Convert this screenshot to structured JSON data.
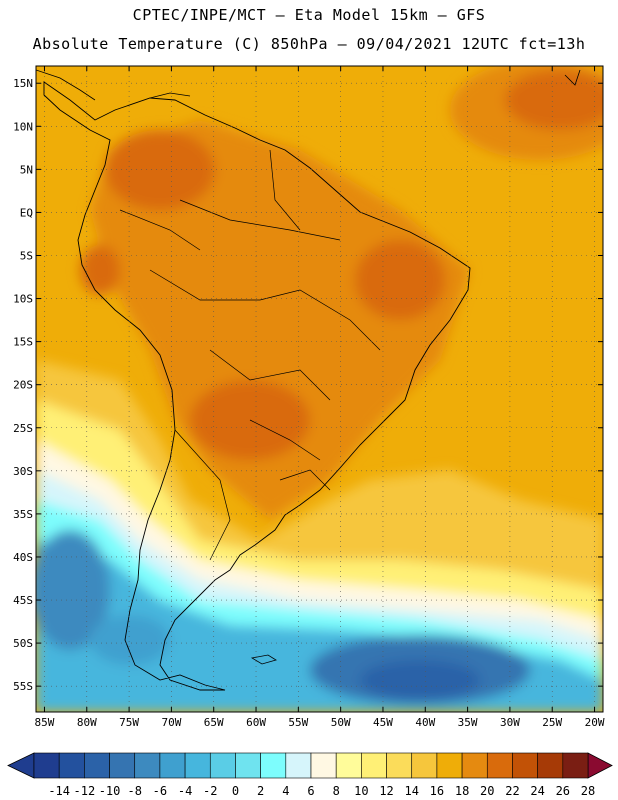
{
  "title": {
    "line1": "CPTEC/INPE/MCT –  Eta Model 15km – GFS",
    "line2": "Absolute Temperature (C) 850hPa – 09/04/2021 12UTC fct=13h"
  },
  "map": {
    "lat_labels": [
      "15N",
      "10N",
      "5N",
      "EQ",
      "5S",
      "10S",
      "15S",
      "20S",
      "25S",
      "30S",
      "35S",
      "40S",
      "45S",
      "50S",
      "55S"
    ],
    "lon_labels": [
      "85W",
      "80W",
      "75W",
      "70W",
      "65W",
      "60W",
      "55W",
      "50W",
      "45W",
      "40W",
      "35W",
      "30W",
      "25W",
      "20W"
    ],
    "lat_range": [
      17,
      -58
    ],
    "lon_range": [
      -86,
      -19
    ]
  },
  "colorbar": {
    "values": [
      "-14",
      "-12",
      "-10",
      "-8",
      "-6",
      "-4",
      "-2",
      "0",
      "2",
      "4",
      "6",
      "8",
      "10",
      "12",
      "14",
      "16",
      "18",
      "20",
      "22",
      "24",
      "26",
      "28"
    ],
    "colors": [
      "#1f3d8f",
      "#23519e",
      "#2b62a8",
      "#3574b1",
      "#3d8abf",
      "#3fa0cf",
      "#46b6dd",
      "#5acde6",
      "#6fe3ef",
      "#7dfdfd",
      "#d6f5fb",
      "#fff8e3",
      "#fffc9a",
      "#fff076",
      "#fbdc5a",
      "#f6c63c",
      "#efad08",
      "#e58a10",
      "#d96b0c",
      "#c25206",
      "#a63a06",
      "#7a1e13",
      "#8a0a30"
    ]
  },
  "icons": {
    "colorbar_left": "left-triangle-icon",
    "colorbar_right": "right-triangle-icon"
  }
}
